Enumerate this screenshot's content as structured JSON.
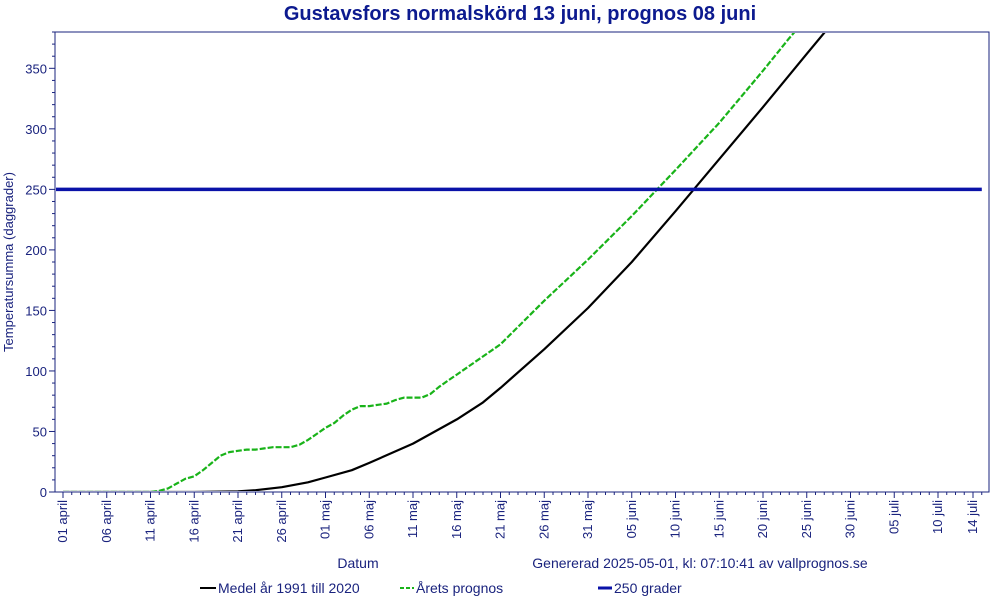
{
  "chart_data": {
    "type": "line",
    "title": "Gustavsfors normalskörd 13 juni, prognos 08 juni",
    "xlabel": "Datum",
    "ylabel": "Temperatursumma (daggrader)",
    "ylim": [
      0,
      380
    ],
    "xlim_days": [
      0,
      105
    ],
    "y_ticks": [
      0,
      50,
      100,
      150,
      200,
      250,
      300,
      350
    ],
    "x_ticks": [
      {
        "day": 0,
        "label": "01 april"
      },
      {
        "day": 5,
        "label": "06 april"
      },
      {
        "day": 10,
        "label": "11 april"
      },
      {
        "day": 15,
        "label": "16 april"
      },
      {
        "day": 20,
        "label": "21 april"
      },
      {
        "day": 25,
        "label": "26 april"
      },
      {
        "day": 30,
        "label": "01 maj"
      },
      {
        "day": 35,
        "label": "06 maj"
      },
      {
        "day": 40,
        "label": "11 maj"
      },
      {
        "day": 45,
        "label": "16 maj"
      },
      {
        "day": 50,
        "label": "21 maj"
      },
      {
        "day": 55,
        "label": "26 maj"
      },
      {
        "day": 60,
        "label": "31 maj"
      },
      {
        "day": 65,
        "label": "05 juni"
      },
      {
        "day": 70,
        "label": "10 juni"
      },
      {
        "day": 75,
        "label": "15 juni"
      },
      {
        "day": 80,
        "label": "20 juni"
      },
      {
        "day": 85,
        "label": "25 juni"
      },
      {
        "day": 90,
        "label": "30 juni"
      },
      {
        "day": 95,
        "label": "05 juli"
      },
      {
        "day": 100,
        "label": "10 juli"
      },
      {
        "day": 104,
        "label": "14 juli"
      }
    ],
    "series": [
      {
        "name": "Medel år 1991 till 2020",
        "color": "#000000",
        "style": "solid",
        "points": [
          [
            0,
            0
          ],
          [
            10,
            0
          ],
          [
            15,
            0
          ],
          [
            20,
            0.5
          ],
          [
            22,
            1.5
          ],
          [
            25,
            4
          ],
          [
            28,
            8
          ],
          [
            30,
            12
          ],
          [
            33,
            18
          ],
          [
            35,
            24
          ],
          [
            40,
            40
          ],
          [
            45,
            60
          ],
          [
            48,
            74
          ],
          [
            50,
            86
          ],
          [
            55,
            118
          ],
          [
            60,
            152
          ],
          [
            65,
            190
          ],
          [
            70,
            232
          ],
          [
            75,
            275
          ],
          [
            80,
            318
          ],
          [
            85,
            362
          ],
          [
            88,
            388
          ],
          [
            90,
            410
          ]
        ]
      },
      {
        "name": "Årets prognos",
        "color": "#19b319",
        "style": "dashed",
        "points": [
          [
            0,
            0
          ],
          [
            10,
            0
          ],
          [
            11,
            1
          ],
          [
            12,
            3
          ],
          [
            13,
            7
          ],
          [
            14,
            11
          ],
          [
            15,
            13
          ],
          [
            16,
            18
          ],
          [
            17,
            24
          ],
          [
            18,
            30
          ],
          [
            19,
            33
          ],
          [
            20,
            34
          ],
          [
            21,
            35
          ],
          [
            22,
            35
          ],
          [
            23,
            36
          ],
          [
            24,
            37
          ],
          [
            25,
            37
          ],
          [
            26,
            37
          ],
          [
            27,
            39
          ],
          [
            28,
            43
          ],
          [
            29,
            48
          ],
          [
            30,
            53
          ],
          [
            31,
            57
          ],
          [
            32,
            63
          ],
          [
            33,
            68
          ],
          [
            34,
            71
          ],
          [
            35,
            71
          ],
          [
            36,
            72
          ],
          [
            37,
            73
          ],
          [
            38,
            76
          ],
          [
            39,
            78
          ],
          [
            40,
            78
          ],
          [
            41,
            78
          ],
          [
            42,
            81
          ],
          [
            43,
            87
          ],
          [
            44,
            92
          ],
          [
            45,
            97
          ],
          [
            50,
            122
          ],
          [
            55,
            158
          ],
          [
            60,
            192
          ],
          [
            65,
            228
          ],
          [
            70,
            266
          ],
          [
            75,
            305
          ],
          [
            80,
            348
          ],
          [
            83,
            375
          ],
          [
            86,
            400
          ]
        ]
      },
      {
        "name": "250 grader",
        "color": "#0a12a8",
        "style": "solid-thick",
        "points": [
          [
            -1,
            250
          ],
          [
            105,
            250
          ]
        ]
      }
    ],
    "footer": "Generated",
    "generated_text": "Genererad 2025-05-01, kl: 07:10:41 av vallprognos.se",
    "legend_position": "bottom",
    "grid": false
  }
}
